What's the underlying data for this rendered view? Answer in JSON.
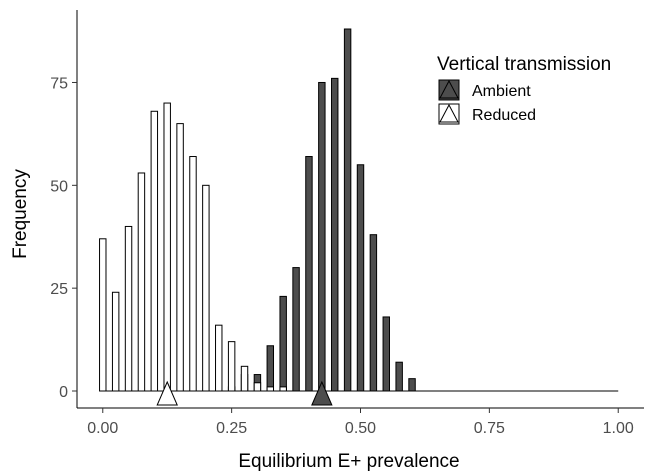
{
  "chart_data": {
    "type": "bar",
    "title": "",
    "xlabel": "Equilibrium E+ prevalence",
    "ylabel": "Frequency",
    "xlim": [
      -0.05,
      1.05
    ],
    "ylim": [
      0,
      90
    ],
    "x_ticks": [
      0.0,
      0.25,
      0.5,
      0.75,
      1.0
    ],
    "x_tick_labels": [
      "0.00",
      "0.25",
      "0.50",
      "0.75",
      "1.00"
    ],
    "y_ticks": [
      0,
      25,
      50,
      75
    ],
    "y_tick_labels": [
      "0",
      "25",
      "50",
      "75"
    ],
    "grid": false,
    "legend_title": "Vertical transmission",
    "legend_position": "top-right",
    "bar_width": 0.0125,
    "series": [
      {
        "name": "Ambient",
        "color": "#4d4d4d",
        "marker": "filled-triangle",
        "mean": 0.425,
        "x": [
          0.0,
          0.025,
          0.05,
          0.075,
          0.1,
          0.125,
          0.15,
          0.175,
          0.2,
          0.225,
          0.25,
          0.275,
          0.3,
          0.325,
          0.35,
          0.375,
          0.4,
          0.425,
          0.45,
          0.475,
          0.5,
          0.525,
          0.55,
          0.575,
          0.6,
          0.625,
          0.65,
          0.675,
          0.7,
          0.725,
          0.75,
          0.775,
          0.8,
          0.825,
          0.85,
          0.875,
          0.9,
          0.925,
          0.95,
          0.975,
          1.0
        ],
        "values": [
          0,
          0,
          0,
          0,
          0,
          0,
          0,
          0,
          0,
          0,
          1,
          4,
          4,
          11,
          23,
          30,
          57,
          75,
          76,
          88,
          55,
          38,
          18,
          7,
          3,
          0,
          0,
          0,
          0,
          0,
          0,
          0,
          0,
          0,
          0,
          0,
          0,
          0,
          0,
          0,
          0
        ]
      },
      {
        "name": "Reduced",
        "color": "#ffffff",
        "marker": "open-triangle",
        "mean": 0.125,
        "x": [
          0.0,
          0.025,
          0.05,
          0.075,
          0.1,
          0.125,
          0.15,
          0.175,
          0.2,
          0.225,
          0.25,
          0.275,
          0.3,
          0.325,
          0.35,
          0.375,
          0.4,
          0.425,
          0.45,
          0.475,
          0.5,
          0.525,
          0.55,
          0.575,
          0.6,
          0.625,
          0.65,
          0.675,
          0.7,
          0.725,
          0.75,
          0.775,
          0.8,
          0.825,
          0.85,
          0.875,
          0.9,
          0.925,
          0.95,
          0.975,
          1.0
        ],
        "values": [
          37,
          24,
          40,
          53,
          68,
          70,
          65,
          57,
          50,
          16,
          12,
          6,
          2,
          1,
          1,
          0,
          0,
          0,
          0,
          0,
          0,
          0,
          0,
          0,
          0,
          0,
          0,
          0,
          0,
          0,
          0,
          0,
          0,
          0,
          0,
          0,
          0,
          0,
          0,
          0,
          0
        ]
      }
    ]
  }
}
